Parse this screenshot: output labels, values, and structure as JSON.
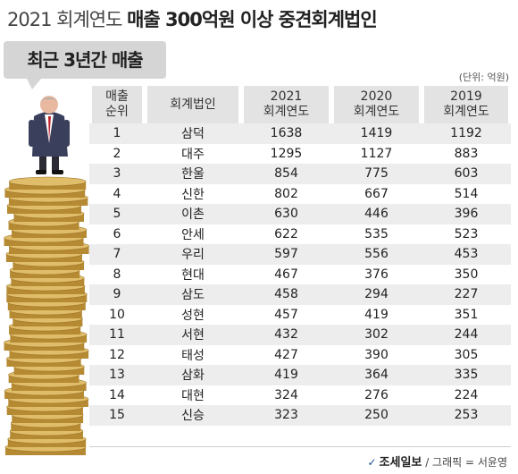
{
  "title": {
    "light": "2021 회계연도",
    "bold": "매출 300억원 이상 중견회계법인"
  },
  "subtitle": "최근 3년간 매출",
  "unit": "(단위: 억원)",
  "headers": {
    "rank": [
      "매출",
      "순위"
    ],
    "firm": "회계법인",
    "y2021": [
      "2021",
      "회계연도"
    ],
    "y2020": [
      "2020",
      "회계연도"
    ],
    "y2019": [
      "2019",
      "회계연도"
    ]
  },
  "rows": [
    {
      "rank": "1",
      "firm": "삼덕",
      "y2021": "1638",
      "y2020": "1419",
      "y2019": "1192"
    },
    {
      "rank": "2",
      "firm": "대주",
      "y2021": "1295",
      "y2020": "1127",
      "y2019": "883"
    },
    {
      "rank": "3",
      "firm": "한울",
      "y2021": "854",
      "y2020": "775",
      "y2019": "603"
    },
    {
      "rank": "4",
      "firm": "신한",
      "y2021": "802",
      "y2020": "667",
      "y2019": "514"
    },
    {
      "rank": "5",
      "firm": "이촌",
      "y2021": "630",
      "y2020": "446",
      "y2019": "396"
    },
    {
      "rank": "6",
      "firm": "안세",
      "y2021": "622",
      "y2020": "535",
      "y2019": "523"
    },
    {
      "rank": "7",
      "firm": "우리",
      "y2021": "597",
      "y2020": "556",
      "y2019": "453"
    },
    {
      "rank": "8",
      "firm": "현대",
      "y2021": "467",
      "y2020": "376",
      "y2019": "350"
    },
    {
      "rank": "9",
      "firm": "삼도",
      "y2021": "458",
      "y2020": "294",
      "y2019": "227"
    },
    {
      "rank": "10",
      "firm": "성현",
      "y2021": "457",
      "y2020": "419",
      "y2019": "351"
    },
    {
      "rank": "11",
      "firm": "서현",
      "y2021": "432",
      "y2020": "302",
      "y2019": "244"
    },
    {
      "rank": "12",
      "firm": "태성",
      "y2021": "427",
      "y2020": "390",
      "y2019": "305"
    },
    {
      "rank": "13",
      "firm": "삼화",
      "y2021": "419",
      "y2020": "364",
      "y2019": "335"
    },
    {
      "rank": "14",
      "firm": "대현",
      "y2021": "324",
      "y2020": "276",
      "y2019": "224"
    },
    {
      "rank": "15",
      "firm": "신승",
      "y2021": "323",
      "y2020": "250",
      "y2019": "253"
    }
  ],
  "footer": {
    "logo": "조세일보",
    "credit": "/ 그래픽 = 서윤영"
  },
  "colors": {
    "header_bg": "#e3e3e3",
    "stripe_bg": "#ededed",
    "bubble_bg": "#d5d5d5",
    "coin": "#c9a24a"
  },
  "illustration": {
    "figure": "businessman-standing-on-coin-stack",
    "icon": "coin-stack-icon"
  }
}
